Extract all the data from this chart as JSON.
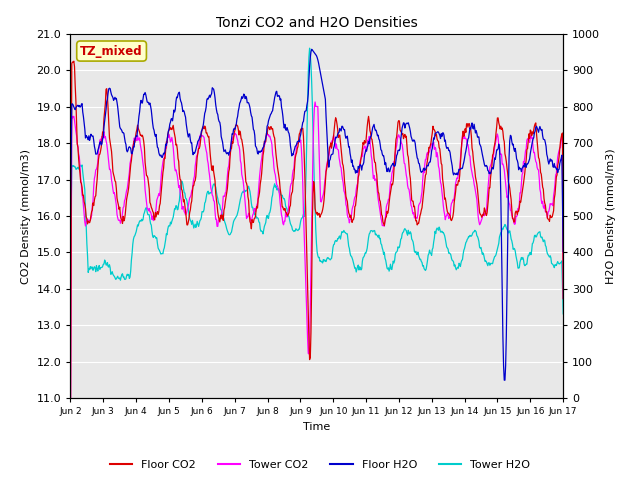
{
  "title": "Tonzi CO2 and H2O Densities",
  "xlabel": "Time",
  "ylabel_left": "CO2 Density (mmol/m3)",
  "ylabel_right": "H2O Density (mmol/m3)",
  "ylim_left": [
    11.0,
    21.0
  ],
  "ylim_right": [
    0,
    1000
  ],
  "yticks_left": [
    11.0,
    12.0,
    13.0,
    14.0,
    15.0,
    16.0,
    17.0,
    18.0,
    19.0,
    20.0,
    21.0
  ],
  "yticks_right": [
    0,
    100,
    200,
    300,
    400,
    500,
    600,
    700,
    800,
    900,
    1000
  ],
  "xtick_labels": [
    "Jun 2",
    "Jun 3",
    "Jun 4",
    "Jun 5",
    "Jun 6",
    "Jun 7",
    "Jun 8",
    "Jun 9",
    "Jun 10",
    "Jun 11",
    "Jun 12",
    "Jun 13",
    "Jun 14",
    "Jun 15",
    "Jun 16",
    "Jun 17"
  ],
  "annotation_text": "TZ_mixed",
  "annotation_color": "#cc0000",
  "annotation_bg": "#ffffcc",
  "colors": {
    "floor_co2": "#dd0000",
    "tower_co2": "#ff00ff",
    "floor_h2o": "#0000cc",
    "tower_h2o": "#00cccc"
  },
  "legend_labels": [
    "Floor CO2",
    "Tower CO2",
    "Floor H2O",
    "Tower H2O"
  ],
  "bg_color": "#e8e8e8",
  "grid_color": "#ffffff"
}
